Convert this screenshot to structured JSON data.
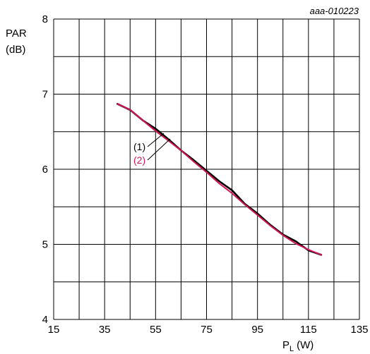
{
  "chart_data": {
    "type": "line",
    "reference_code": "aaa-010223",
    "xlabel": "P",
    "xlabel_sub": "L",
    "xlabel_unit": "(W)",
    "ylabel_line1": "PAR",
    "ylabel_line2": "(dB)",
    "xlim": [
      15,
      135
    ],
    "ylim": [
      4,
      8
    ],
    "x_ticks": [
      15,
      35,
      55,
      75,
      95,
      115,
      135
    ],
    "x_tick_labels": [
      "15",
      "35",
      "55",
      "75",
      "95",
      "115",
      "135"
    ],
    "y_ticks": [
      4,
      5,
      6,
      7,
      8
    ],
    "y_tick_labels": [
      "4",
      "5",
      "6",
      "7",
      "8"
    ],
    "grid": true,
    "grid_x_step": 10,
    "grid_y_step": 0.5,
    "series": [
      {
        "name": "(1)",
        "color": "#000000",
        "x": [
          40,
          45,
          50,
          55,
          60,
          65,
          70,
          75,
          80,
          85,
          90,
          95,
          100,
          105,
          110,
          115,
          120
        ],
        "y": [
          6.87,
          6.79,
          6.65,
          6.54,
          6.4,
          6.25,
          6.12,
          5.98,
          5.84,
          5.72,
          5.54,
          5.41,
          5.26,
          5.13,
          5.04,
          4.92,
          4.86
        ]
      },
      {
        "name": "(2)",
        "color": "#d4145a",
        "x": [
          40,
          45,
          50,
          55,
          60,
          65,
          70,
          75,
          80,
          85,
          90,
          95,
          100,
          105,
          110,
          115,
          120
        ],
        "y": [
          6.87,
          6.79,
          6.65,
          6.51,
          6.38,
          6.25,
          6.1,
          5.96,
          5.81,
          5.68,
          5.53,
          5.39,
          5.25,
          5.12,
          5.01,
          4.93,
          4.86
        ]
      }
    ]
  }
}
